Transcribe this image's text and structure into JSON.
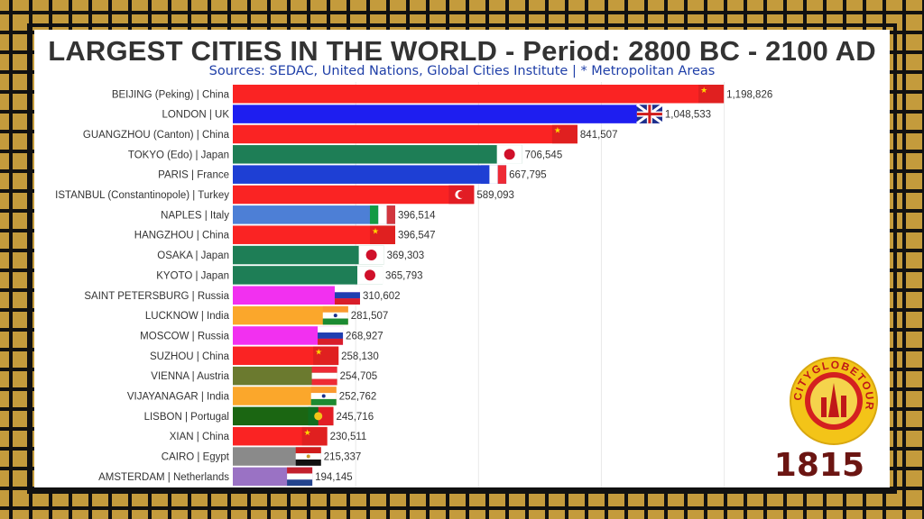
{
  "header": {
    "title": "LARGEST CITIES IN THE WORLD - Period: 2800 BC - 2100 AD",
    "subtitle": "Sources: SEDAC, United Nations, Global Cities Institute | * Metropolitan Areas"
  },
  "year": "1815",
  "logo": {
    "text": "CITYGLOBETOUR",
    "icon": "city-globe-tour-logo"
  },
  "colors": {
    "china": "#fa2323",
    "uk": "#1e1ef0",
    "japan": "#1e7e56",
    "france": "#1e3fd4",
    "turkey": "#fa2323",
    "italy": "#4d7fd6",
    "russia": "#f230f0",
    "india": "#fba72b",
    "austria": "#6b7a2f",
    "portugal": "#1b6612",
    "egypt": "#8a8a8a",
    "netherlands": "#9a72c4"
  },
  "chart_data": {
    "type": "bar",
    "orientation": "horizontal",
    "title": "LARGEST CITIES IN THE WORLD - Period: 2800 BC - 2100 AD",
    "subtitle": "Sources: SEDAC, United Nations, Global Cities Institute | * Metropolitan Areas",
    "xlim": [
      0,
      1300000
    ],
    "grid": true,
    "categories": [
      "BEIJING (Peking) | China",
      "LONDON | UK",
      "GUANGZHOU (Canton) | China",
      "TOKYO (Edo) | Japan",
      "PARIS | France",
      "ISTANBUL (Constantinopole) | Turkey",
      "NAPLES | Italy",
      "HANGZHOU | China",
      "OSAKA | Japan",
      "KYOTO | Japan",
      "SAINT PETERSBURG | Russia",
      "LUCKNOW | India",
      "MOSCOW | Russia",
      "SUZHOU | China",
      "VIENNA | Austria",
      "VIJAYANAGAR | India",
      "LISBON | Portugal",
      "XIAN | China",
      "CAIRO | Egypt",
      "AMSTERDAM | Netherlands"
    ],
    "values": [
      1198826,
      1048533,
      841507,
      706545,
      667795,
      589093,
      396514,
      396547,
      369303,
      365793,
      310602,
      281507,
      268927,
      258130,
      254705,
      252762,
      245716,
      230511,
      215337,
      194145
    ],
    "value_labels": [
      "1,198,826",
      "1,048,533",
      "841,507",
      "706,545",
      "667,795",
      "589,093",
      "396,514",
      "396,547",
      "369,303",
      "365,793",
      "310,602",
      "281,507",
      "268,927",
      "258,130",
      "254,705",
      "252,762",
      "245,716",
      "230,511",
      "215,337",
      "194,145"
    ],
    "bar_colors": [
      "china",
      "uk",
      "china",
      "japan",
      "france",
      "turkey",
      "italy",
      "china",
      "japan",
      "japan",
      "russia",
      "india",
      "russia",
      "china",
      "austria",
      "india",
      "portugal",
      "china",
      "egypt",
      "netherlands"
    ],
    "flags": [
      "flag-china-icon",
      "flag-uk-icon",
      "flag-china-icon",
      "flag-japan-icon",
      "flag-france-icon",
      "flag-turkey-icon",
      "flag-italy-icon",
      "flag-china-icon",
      "flag-japan-icon",
      "flag-japan-icon",
      "flag-russia-icon",
      "flag-india-icon",
      "flag-russia-icon",
      "flag-china-icon",
      "flag-austria-icon",
      "flag-india-icon",
      "flag-portugal-icon",
      "flag-china-icon",
      "flag-egypt-icon",
      "flag-netherlands-icon"
    ]
  }
}
